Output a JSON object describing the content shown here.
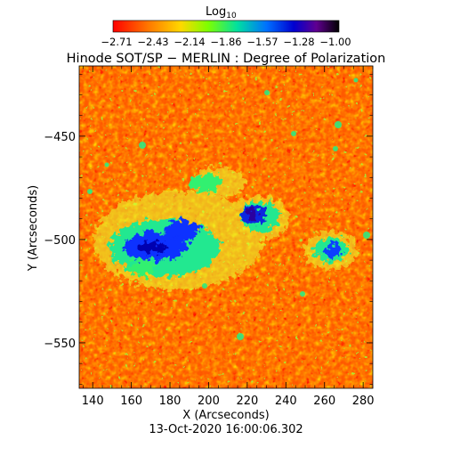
{
  "colorbar": {
    "label_prefix": "Log",
    "label_sub": "10",
    "tick_labels": [
      "−2.71",
      "−2.43",
      "−2.14",
      "−1.86",
      "−1.57",
      "−1.28",
      "−1.00"
    ],
    "range": [
      -2.71,
      -1.0
    ],
    "colors": [
      "#ff0000",
      "#ff7a00",
      "#ffd800",
      "#7dff00",
      "#00e0a0",
      "#0070ff",
      "#0000d0",
      "#600090",
      "#000000"
    ]
  },
  "title": "Hinode SOT/SP − MERLIN : Degree of Polarization",
  "xaxis": {
    "label": "X (Arcseconds)",
    "range": [
      133,
      285
    ],
    "ticks": [
      140,
      160,
      180,
      200,
      220,
      240,
      260,
      280
    ]
  },
  "yaxis": {
    "label": "Y (Arcseconds)",
    "range": [
      -572,
      -416
    ],
    "ticks": [
      -450,
      -500,
      -550
    ],
    "tick_labels": [
      "−450",
      "−500",
      "−550"
    ]
  },
  "timestamp": "13-Oct-2020 16:00:06.302",
  "map": {
    "background": "orange-red granulation",
    "blue_regions_center_arcsec": [
      [
        178,
        -500
      ],
      [
        220,
        -485
      ],
      [
        260,
        -502
      ]
    ]
  }
}
